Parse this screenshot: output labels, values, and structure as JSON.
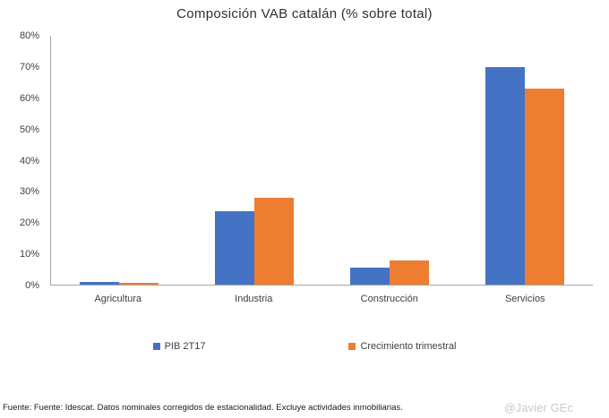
{
  "chart_data": {
    "type": "bar",
    "title": "Composición VAB catalán (% sobre total)",
    "categories": [
      "Agricultura",
      "Industria",
      "Construcción",
      "Servicios"
    ],
    "series": [
      {
        "name": "PIB 2T17",
        "color": "#4472C4",
        "values": [
          1.0,
          23.7,
          5.5,
          69.8
        ]
      },
      {
        "name": "Crecimiento trimestral",
        "color": "#ED7D31",
        "values": [
          0.5,
          27.9,
          7.9,
          62.9
        ]
      }
    ],
    "ylabel": "",
    "xlabel": "",
    "ylim": [
      0,
      80
    ],
    "y_ticks": [
      "0%",
      "10%",
      "20%",
      "30%",
      "40%",
      "50%",
      "60%",
      "70%",
      "80%"
    ],
    "grid": false,
    "legend_position": "bottom"
  },
  "footer": {
    "source": "Fuente: Fuente:  Idescat. Datos nominales corregidos de estacionalidad. Excluye actividades inmobiliarias.",
    "credit": "@Javier GEc"
  },
  "colors": {
    "axis": "#a6a6a6",
    "tick_text": "#404040",
    "title_text": "#2e2e38",
    "credit_text": "#c7c7cf"
  }
}
